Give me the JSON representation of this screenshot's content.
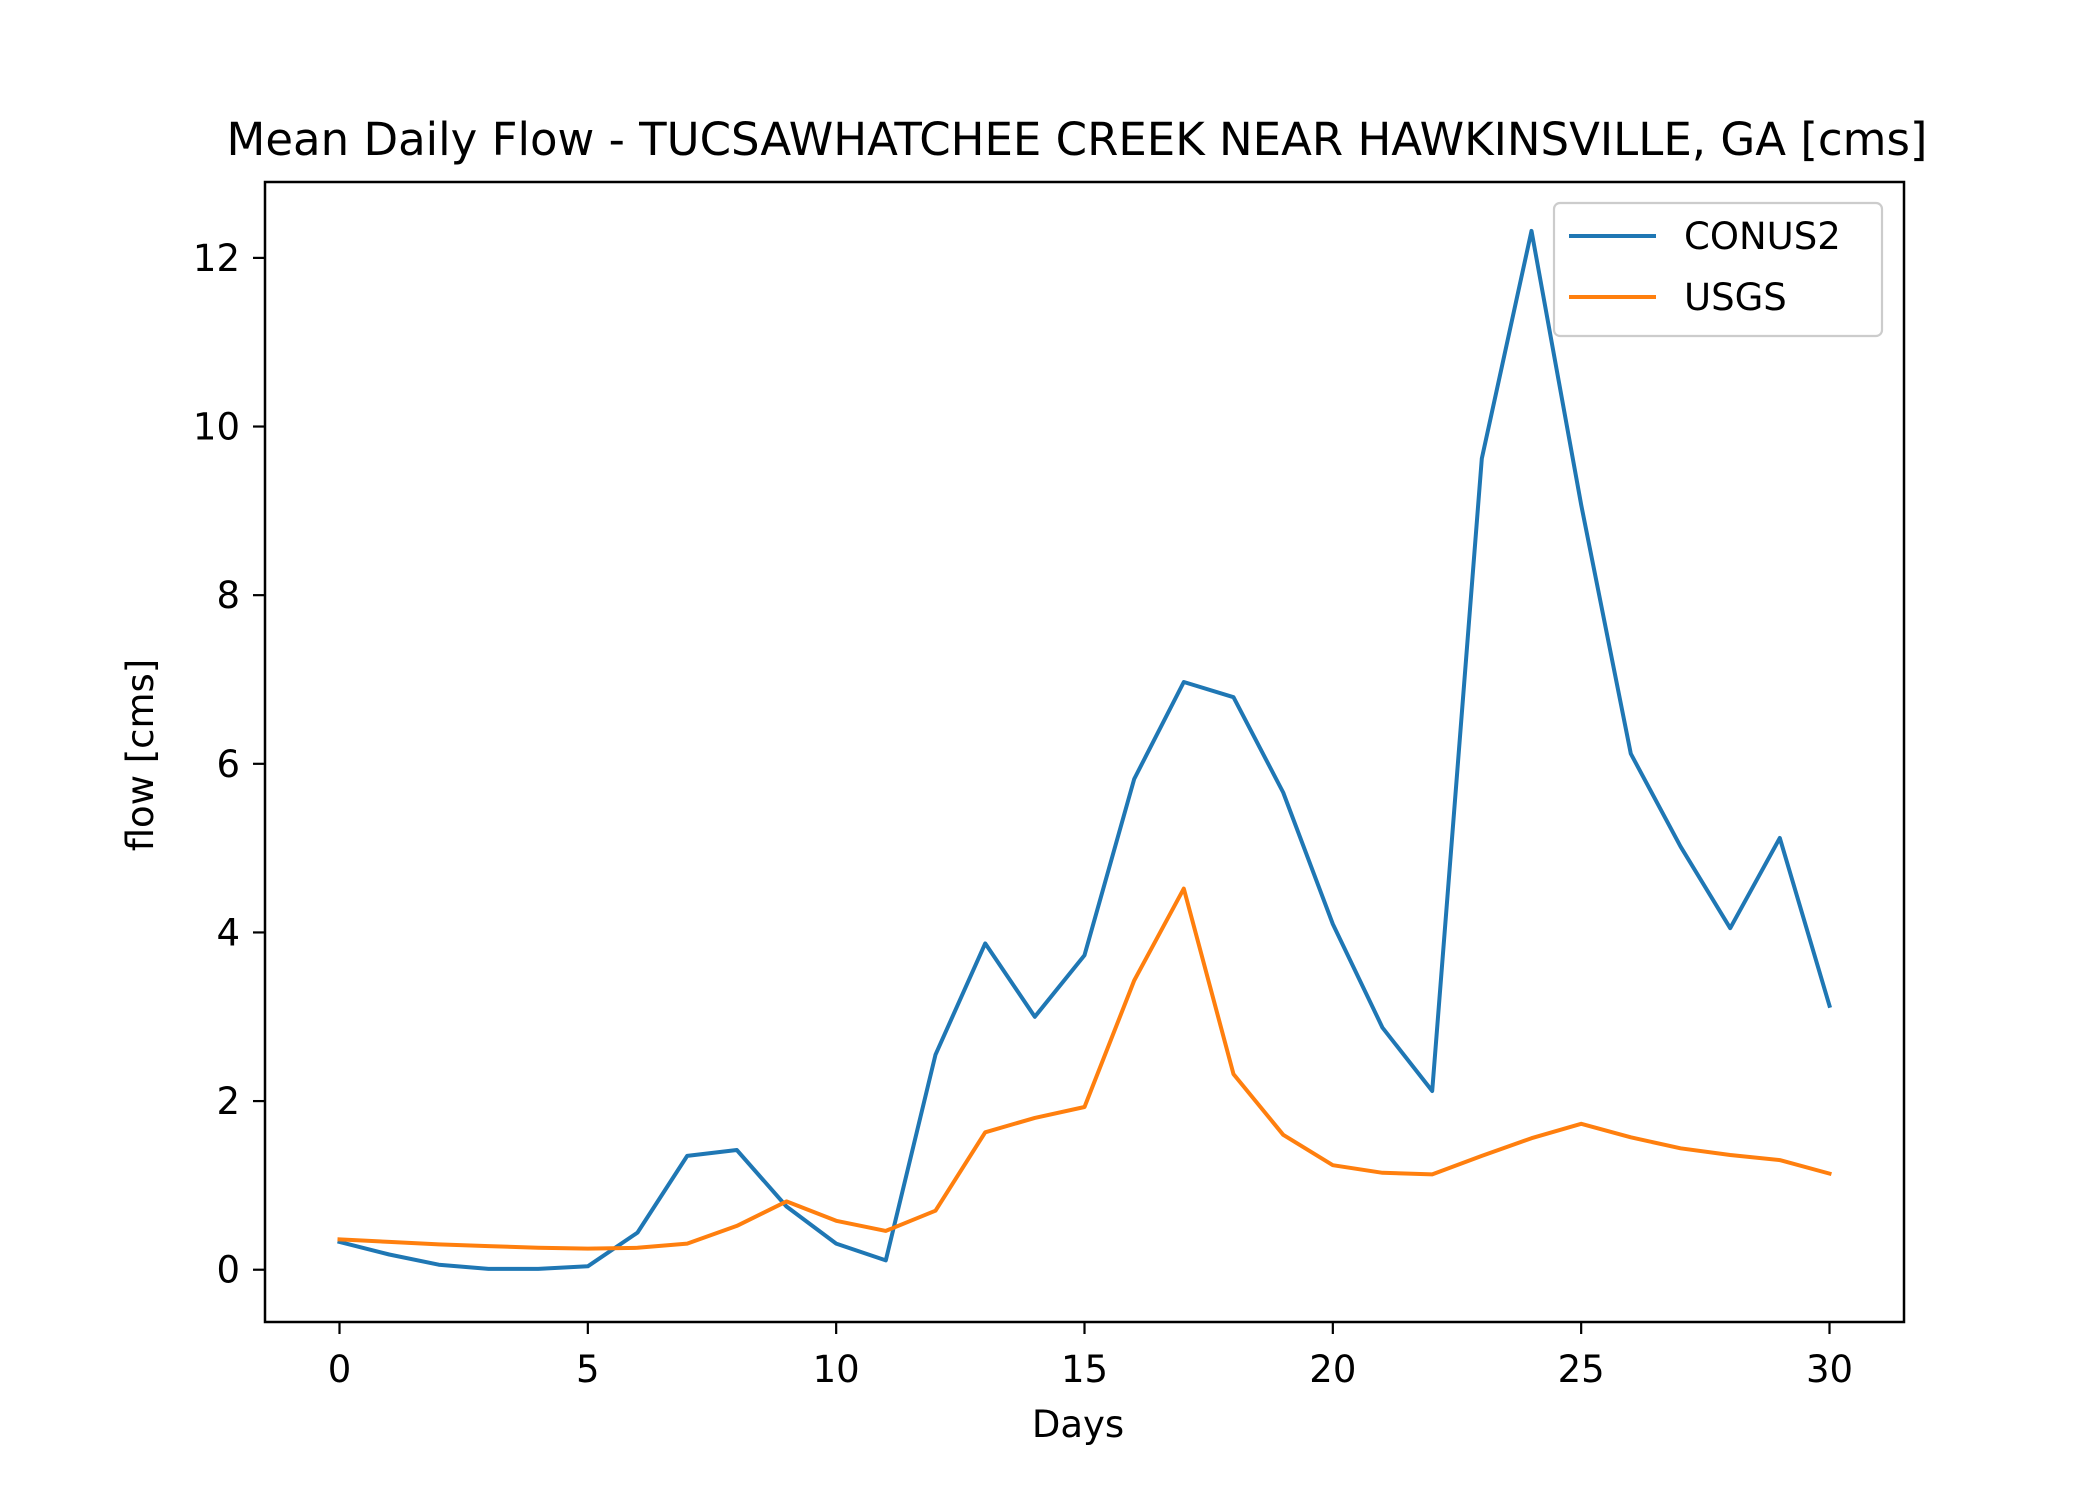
{
  "chart_data": {
    "type": "line",
    "title": "Mean Daily Flow - TUCSAWHATCHEE CREEK NEAR HAWKINSVILLE, GA [cms]",
    "xlabel": "Days",
    "ylabel": "flow [cms]",
    "xlim": [
      -1.5,
      31.5
    ],
    "ylim": [
      -0.62,
      12.9
    ],
    "xticks": [
      0,
      5,
      10,
      15,
      20,
      25,
      30
    ],
    "yticks": [
      0,
      2,
      4,
      6,
      8,
      10,
      12
    ],
    "grid": false,
    "legend_position": "upper right",
    "x": [
      0,
      1,
      2,
      3,
      4,
      5,
      6,
      7,
      8,
      9,
      10,
      11,
      12,
      13,
      14,
      15,
      16,
      17,
      18,
      19,
      20,
      21,
      22,
      23,
      24,
      25,
      26,
      27,
      28,
      29,
      30
    ],
    "series": [
      {
        "name": "CONUS2",
        "color": "#1f77b4",
        "values": [
          0.33,
          0.18,
          0.06,
          0.01,
          0.01,
          0.04,
          0.44,
          1.35,
          1.42,
          0.75,
          0.31,
          0.11,
          2.55,
          3.87,
          3.0,
          3.73,
          5.82,
          6.97,
          6.79,
          5.66,
          4.1,
          2.87,
          2.12,
          9.62,
          12.32,
          9.07,
          6.12,
          5.02,
          4.05,
          5.12,
          3.13
        ],
        "legend_label": "CONUS2"
      },
      {
        "name": "USGS",
        "color": "#ff7f0e",
        "values": [
          0.36,
          0.33,
          0.3,
          0.28,
          0.26,
          0.25,
          0.26,
          0.31,
          0.52,
          0.81,
          0.58,
          0.46,
          0.7,
          1.63,
          1.8,
          1.93,
          3.43,
          4.52,
          2.32,
          1.6,
          1.24,
          1.15,
          1.13,
          1.35,
          1.56,
          1.73,
          1.57,
          1.44,
          1.36,
          1.3,
          1.14
        ],
        "legend_label": "USGS"
      }
    ]
  }
}
